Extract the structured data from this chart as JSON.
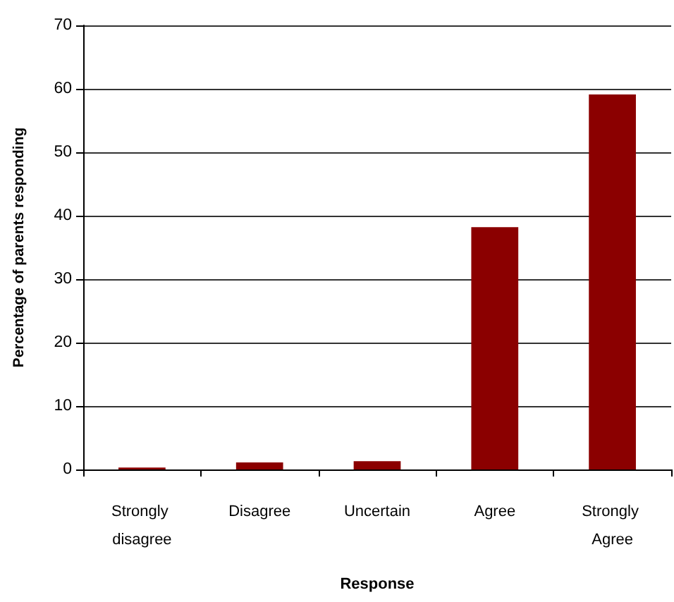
{
  "chart_data": {
    "type": "bar",
    "categories": [
      "Strongly disagree",
      "Disagree",
      "Uncertain",
      "Agree",
      "Strongly Agree"
    ],
    "values": [
      0.3,
      1.1,
      1.3,
      38.2,
      59.1
    ],
    "color": "#8b0000",
    "xlabel": "Response",
    "ylabel": "Percentage of parents responding",
    "ylim": [
      0,
      70
    ],
    "yticks": [
      0,
      10,
      20,
      30,
      40,
      50,
      60,
      70
    ],
    "grid": "y"
  }
}
